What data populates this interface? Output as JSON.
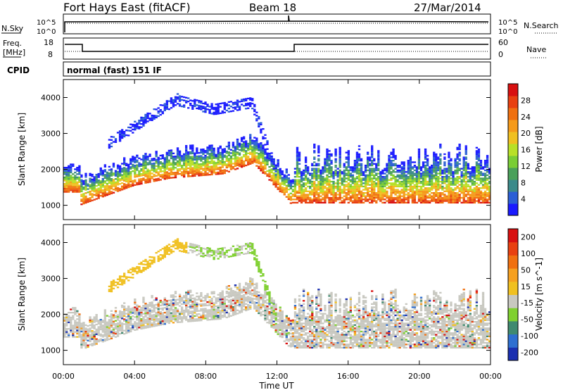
{
  "header": {
    "station": "Fort Hays East (fitACF)",
    "beam": "Beam 18",
    "date": "27/Mar/2014"
  },
  "noise_panel": {
    "left_label": "N.Sky",
    "right_label": "N.Search",
    "ticks_left": [
      "10^5",
      "10^0"
    ],
    "ticks_right": [
      "10^5",
      "10^0"
    ]
  },
  "freq_panel": {
    "left_label_1": "Freq.",
    "left_label_2": "[MHz]",
    "right_label": "Nave",
    "ticks_left": [
      "18",
      "8"
    ],
    "ticks_right": [
      "60",
      "0"
    ]
  },
  "cpid_panel": {
    "label": "CPID",
    "mode_text": "normal (fast) 151 IF"
  },
  "chart_data": [
    {
      "type": "heatmap",
      "title": "",
      "quantity": "Power",
      "ylabel": "Slant Range [km]",
      "ylim": [
        600,
        4500
      ],
      "y_ticks": [
        "1000",
        "2000",
        "3000",
        "4000"
      ],
      "xlim_hours": [
        0,
        24
      ],
      "colorbar": {
        "label": "Power [dB]",
        "ticks": [
          "4",
          "8",
          "12",
          "16",
          "20",
          "24",
          "28"
        ],
        "colors": [
          "#1a1aff",
          "#2b5fd6",
          "#3b8a8a",
          "#4aa05a",
          "#7acd35",
          "#b8e027",
          "#f0c020",
          "#f59a1a",
          "#f07010",
          "#e84010",
          "#d81010"
        ]
      },
      "features": [
        {
          "name": "main echo band",
          "hours": [
            0,
            24
          ],
          "range_km": [
            1000,
            2400
          ]
        },
        {
          "name": "upper scatter arc",
          "hours": [
            2,
            12
          ],
          "range_km": [
            2500,
            4000
          ]
        }
      ]
    },
    {
      "type": "heatmap",
      "title": "",
      "quantity": "Velocity",
      "ylabel": "Slant Range [km]",
      "ylim": [
        600,
        4500
      ],
      "y_ticks": [
        "1000",
        "2000",
        "3000",
        "4000"
      ],
      "xlim_hours": [
        0,
        24
      ],
      "x_ticks": [
        "00:00",
        "04:00",
        "08:00",
        "12:00",
        "16:00",
        "20:00",
        "00:00"
      ],
      "xlabel": "Time UT",
      "colorbar": {
        "label": "Velocity [m s^-1]",
        "ticks": [
          "200",
          "100",
          "50",
          "15",
          "-15",
          "-50",
          "-100",
          "-200"
        ],
        "colors": [
          "#1a2fb0",
          "#2e6fd0",
          "#3f8a70",
          "#7fd030",
          "#c8c8c0",
          "#f0c020",
          "#f5a020",
          "#f07010",
          "#e84010",
          "#d81010"
        ]
      }
    }
  ]
}
